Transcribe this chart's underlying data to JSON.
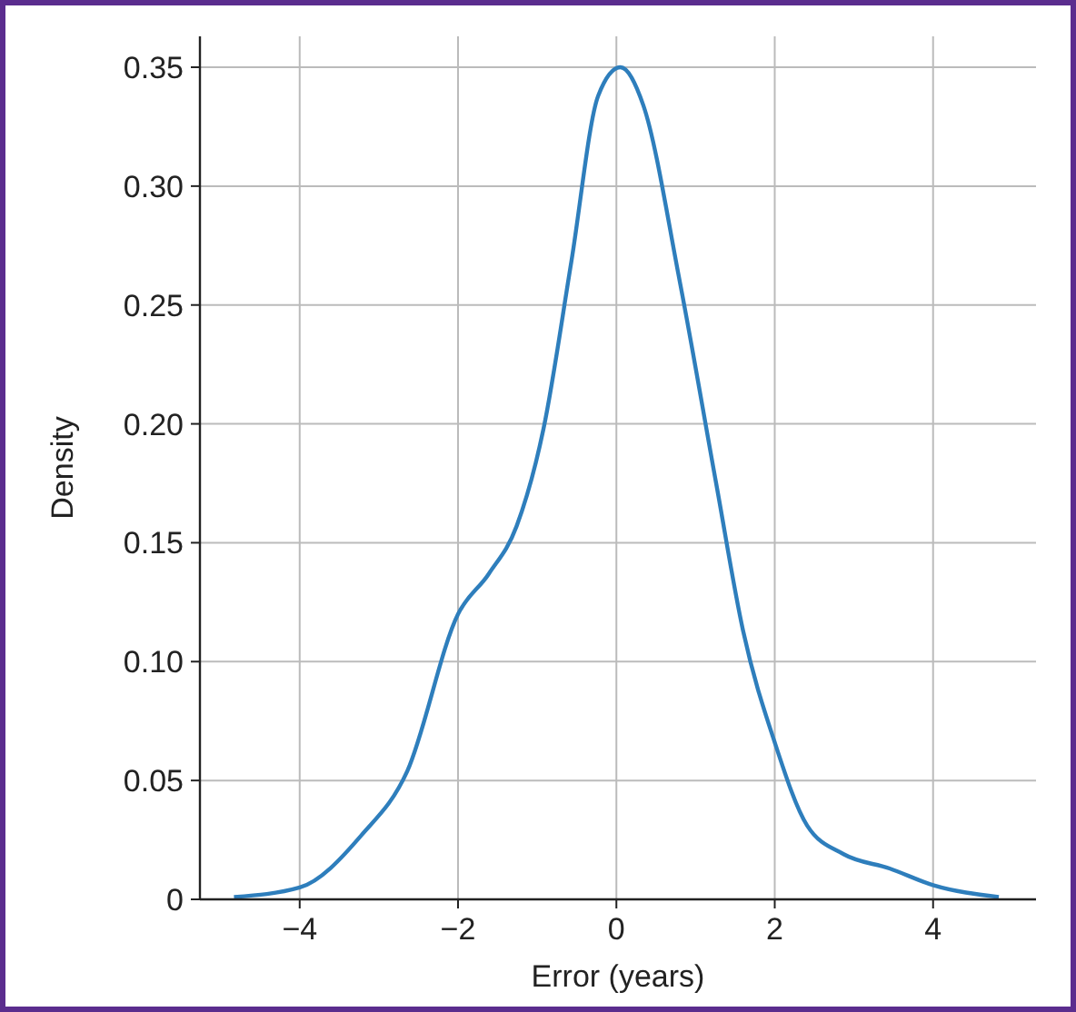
{
  "chart_data": {
    "type": "line",
    "xlabel": "Error (years)",
    "ylabel": "Density",
    "x": [
      -4.83,
      -4.0,
      -3.22,
      -2.64,
      -2.0,
      -1.61,
      -1.26,
      -0.92,
      -0.57,
      -0.23,
      0.05,
      0.34,
      0.8,
      1.26,
      1.6,
      2.0,
      2.41,
      2.87,
      3.45,
      4.0,
      4.83
    ],
    "series": [
      {
        "color": "#2e7ebc",
        "values": [
          0.001,
          0.005,
          0.027,
          0.054,
          0.12,
          0.137,
          0.157,
          0.198,
          0.268,
          0.338,
          0.35,
          0.334,
          0.26,
          0.175,
          0.113,
          0.066,
          0.031,
          0.019,
          0.013,
          0.006,
          0.001
        ]
      }
    ],
    "xlim": [
      -5.26,
      5.3
    ],
    "ylim": [
      0,
      0.363
    ],
    "xticks": [
      {
        "value": -4,
        "label": "−4"
      },
      {
        "value": -2,
        "label": "−2"
      },
      0,
      2,
      4
    ],
    "yticks": [
      0,
      {
        "value": 0.05,
        "label": "0.05"
      },
      {
        "value": 0.1,
        "label": "0.10"
      },
      {
        "value": 0.15,
        "label": "0.15"
      },
      {
        "value": 0.2,
        "label": "0.20"
      },
      {
        "value": 0.25,
        "label": "0.25"
      },
      {
        "value": 0.3,
        "label": "0.30"
      },
      {
        "value": 0.35,
        "label": "0.35"
      }
    ],
    "grid": true,
    "marker": "none",
    "line_style": "solid"
  }
}
